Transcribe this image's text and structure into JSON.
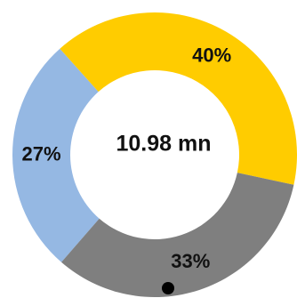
{
  "chart_data": {
    "type": "pie",
    "variant": "donut",
    "center_label": "10.98 mn",
    "slices": [
      {
        "value": 27,
        "label": "27%",
        "color": "#95b8e3"
      },
      {
        "value": 40,
        "label": "40%",
        "color": "#ffcc00"
      },
      {
        "value": 33,
        "label": "33%",
        "color": "#7f7f7f"
      }
    ],
    "marker_color": "#000000"
  }
}
